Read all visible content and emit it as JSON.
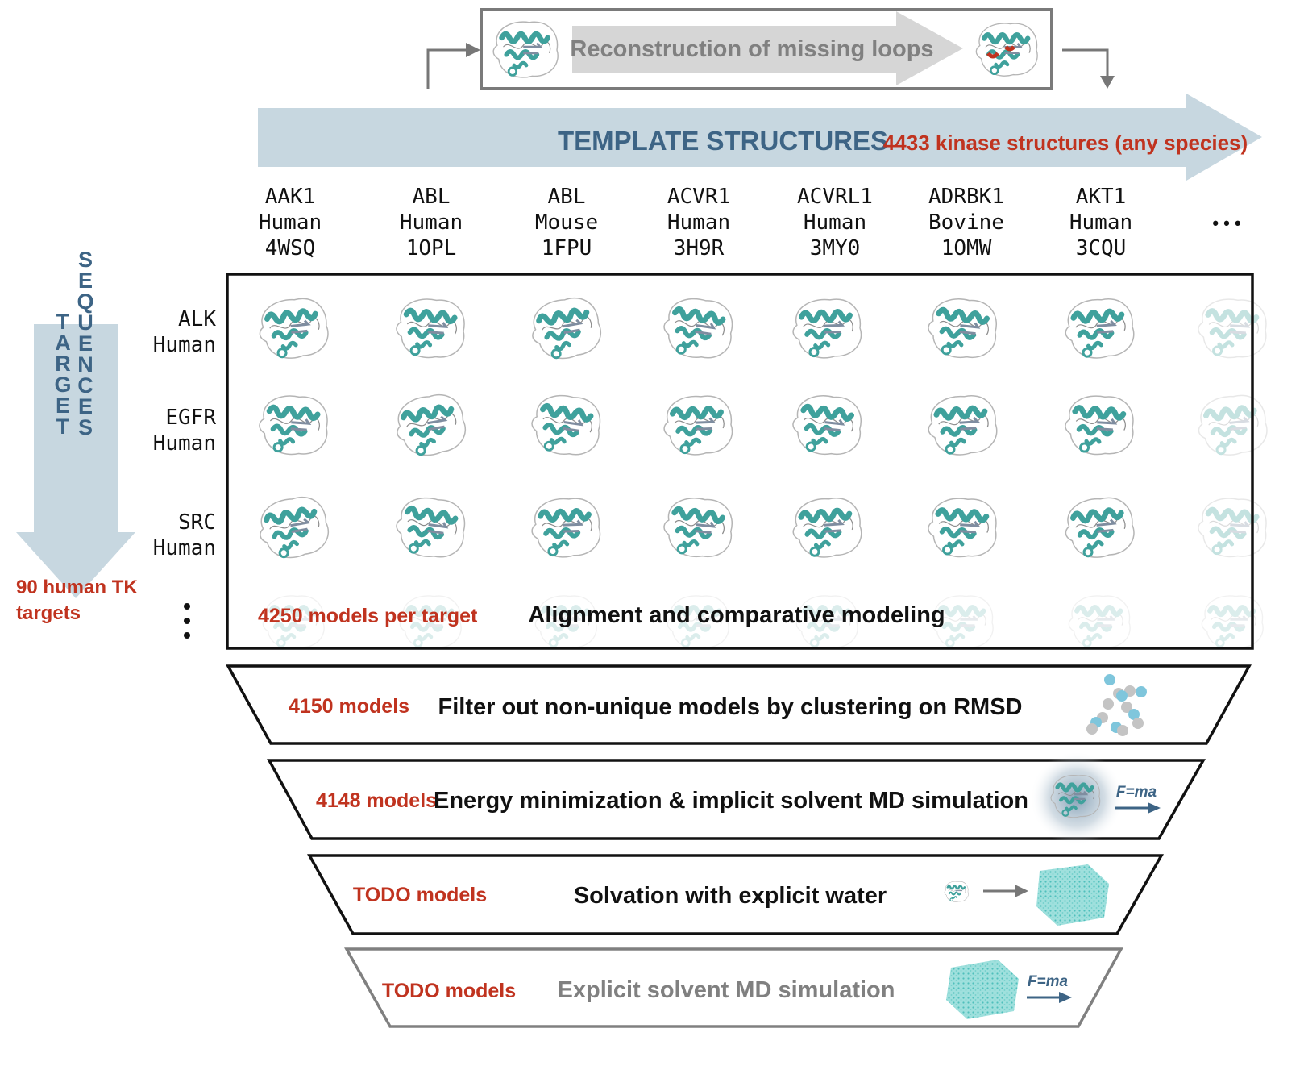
{
  "colors": {
    "accent_red": "#c0331f",
    "arrow_fill": "#c7d7e0",
    "arrow_text": "#3d6485",
    "protein": "#3fa19c",
    "frame": "#111111",
    "muted_frame": "#808080",
    "muted_text": "#808080",
    "water": "#7ed3d0"
  },
  "loop_step": {
    "label": "Reconstruction of missing loops"
  },
  "template_arrow": {
    "label": "TEMPLATE STRUCTURES",
    "count": "4433 kinase structures (any species)"
  },
  "templates": [
    {
      "gene": "AAK1",
      "species": "Human",
      "pdb": "4WSQ"
    },
    {
      "gene": "ABL",
      "species": "Human",
      "pdb": "1OPL"
    },
    {
      "gene": "ABL",
      "species": "Mouse",
      "pdb": "1FPU"
    },
    {
      "gene": "ACVR1",
      "species": "Human",
      "pdb": "3H9R"
    },
    {
      "gene": "ACVRL1",
      "species": "Human",
      "pdb": "3MY0"
    },
    {
      "gene": "ADRBK1",
      "species": "Bovine",
      "pdb": "1OMW"
    },
    {
      "gene": "AKT1",
      "species": "Human",
      "pdb": "3CQU"
    }
  ],
  "templates_more": "• • •",
  "target_arrow": {
    "word1": "TARGET",
    "word2": "SEQUENCES",
    "count_line1": "90 human TK",
    "count_line2": "targets"
  },
  "targets": [
    {
      "gene": "ALK",
      "species": "Human"
    },
    {
      "gene": "EGFR",
      "species": "Human"
    },
    {
      "gene": "SRC",
      "species": "Human"
    }
  ],
  "targets_more": "•\n•\n•",
  "modeling": {
    "count": "4250 models per target",
    "label": "Alignment and comparative modeling"
  },
  "stages": [
    {
      "count": "4150 models",
      "label": "Filter out non-unique models by clustering on RMSD",
      "icon": "cluster-dots-icon"
    },
    {
      "count": "4148 models",
      "label": "Energy minimization & implicit solvent MD simulation",
      "icon": "implicit-md-icon",
      "formula": "F=ma"
    },
    {
      "count": "TODO models",
      "label": "Solvation with explicit water",
      "icon": "solvation-icon"
    },
    {
      "count": "TODO models",
      "label": "Explicit solvent MD simulation",
      "icon": "explicit-md-icon",
      "formula": "F=ma"
    }
  ]
}
